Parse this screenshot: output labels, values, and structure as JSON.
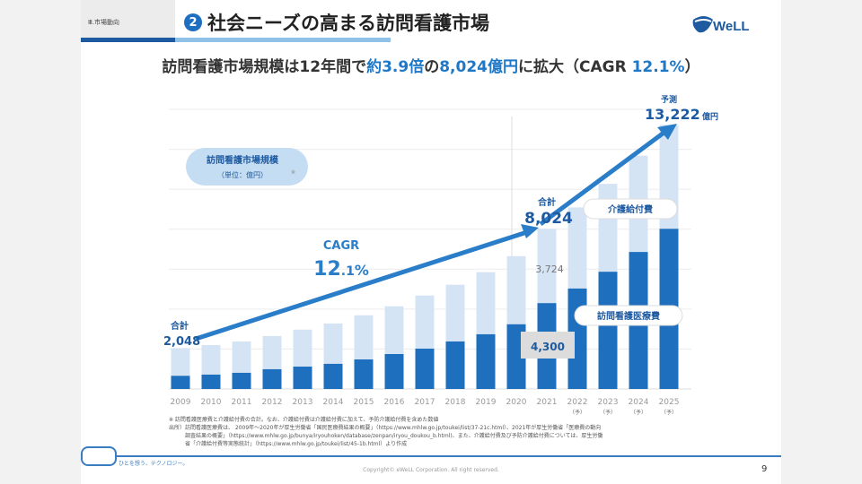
{
  "header": {
    "section": "Ⅲ.市場動向",
    "number": "2",
    "title": "社会ニーズの高まる訪問看護市場",
    "logo_text": "eWeLL"
  },
  "subtitle": {
    "part1": "訪問看護市場規模は12年間で",
    "part2": "約3.9倍",
    "part3": "の",
    "part4": "8,024億円",
    "part5": "に拡大（CAGR ",
    "part6": "12.1%",
    "part7": "）"
  },
  "colors": {
    "nursing": "#1e6fbd",
    "care": "#d4e4f5",
    "accent": "#1e78c8"
  },
  "chart_data": {
    "type": "bar",
    "stacked": true,
    "categories": [
      "2009",
      "2010",
      "2011",
      "2012",
      "2013",
      "2014",
      "2015",
      "2016",
      "2017",
      "2018",
      "2019",
      "2020",
      "2021",
      "2022",
      "2023",
      "2024",
      "2025"
    ],
    "forecast_mark": "（予）",
    "forecast_from": "2022",
    "series": [
      {
        "name": "訪問看護医療費",
        "values": [
          660,
          720,
          810,
          990,
          1120,
          1260,
          1480,
          1750,
          2020,
          2380,
          2740,
          3240,
          4300,
          5030,
          5870,
          6860,
          8020
        ]
      },
      {
        "name": "介護給付費",
        "values": [
          1388,
          1480,
          1570,
          1660,
          1850,
          2020,
          2210,
          2390,
          2660,
          2840,
          3110,
          3410,
          3724,
          4060,
          4400,
          4820,
          5202
        ]
      }
    ],
    "ylim": [
      0,
      14000
    ],
    "grid_step": 2000,
    "legend_title": "訪問看護市場規模",
    "legend_unit": "（単位：億円）",
    "legend_note": "※",
    "label_care": "介護給付費",
    "label_nursing": "訪問看護医療費",
    "annotations": {
      "start_label": "合計",
      "start_value": "2,048",
      "mid_label": "合計",
      "mid_value": "8,024",
      "care_2021": "3,724",
      "nursing_2021": "4,300",
      "cagr_label": "CAGR",
      "cagr_int": "12",
      "cagr_dec": ".1",
      "cagr_pct": "%",
      "forecast_label": "予測",
      "forecast_value": "13,222",
      "forecast_unit": "億円"
    }
  },
  "notes": [
    "※ 訪問看護医療費と介護給付費の合計。なお、介護給付費は介護給付費に加えて、予防介護給付費を含めた数値",
    "出所）訪問看護医療費は、 2009年～2020年が厚生労働省「国民医療費結果の概要」（https://www.mhlw.go.jp/toukei/list/37-21c.html）、2021年が厚生労働省「医療費の動向",
    "　　　調査結果の概要」（https://www.mhlw.go.jp/bunya/iryouhoken/database/zenpan/iryou_doukou_b.html)、また、介護給付費及び予防介護給付費については、厚生労働",
    "　　　省「介護給付費等実態統計」（https://www.mhlw.go.jp/toukei/list/45-1b.html）より作成"
  ],
  "footer": {
    "tagline": "ひとを想う、テクノロジー。",
    "copyright": "Copyright© eWeLL Corporation. All right reserved.",
    "page": "9"
  }
}
